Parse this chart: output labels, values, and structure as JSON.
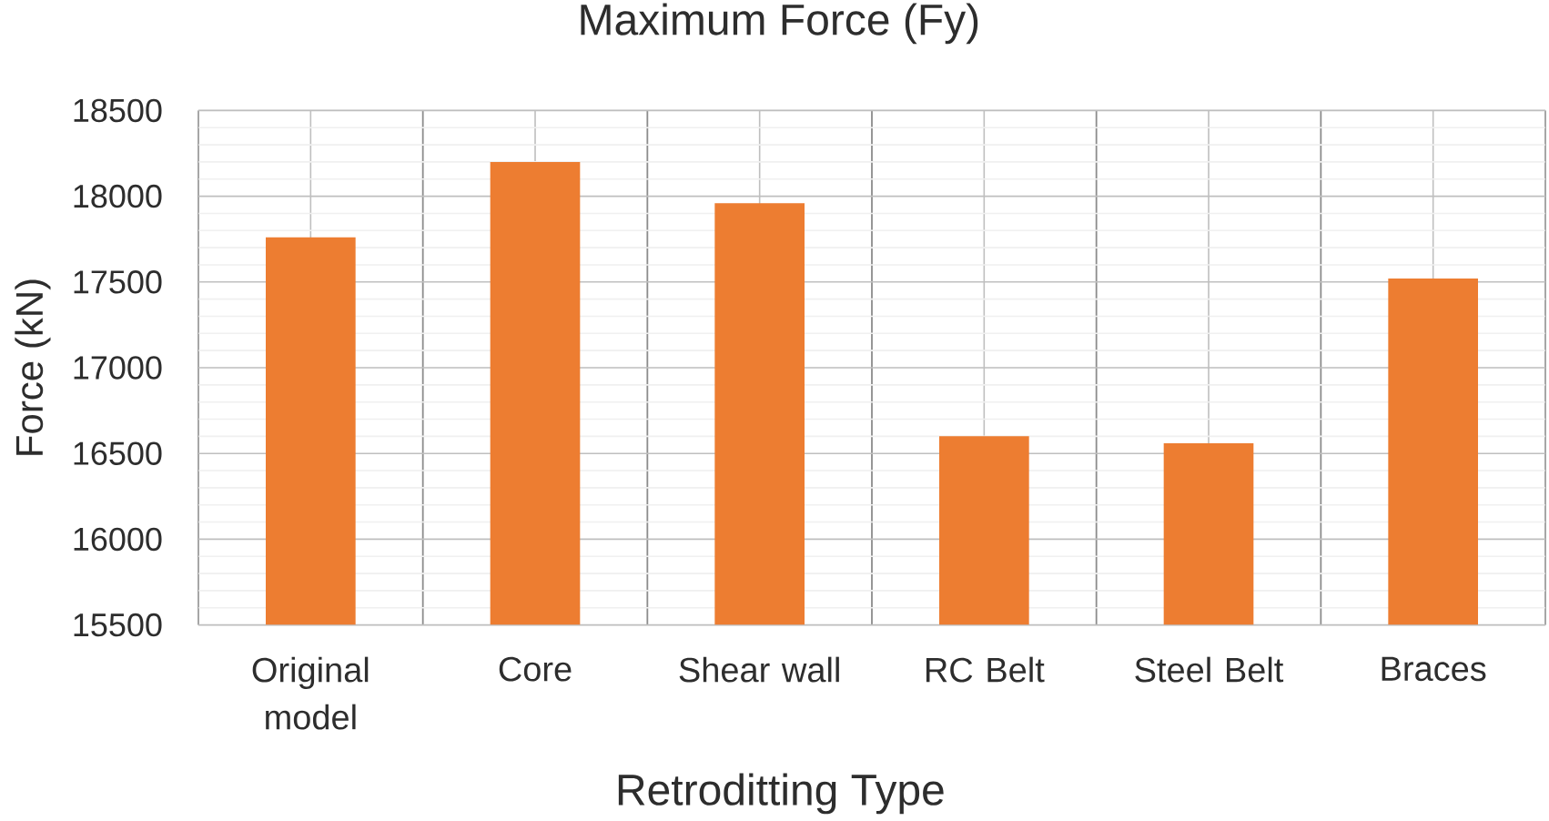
{
  "chart_data": {
    "type": "bar",
    "title": "Maximum Force (Fy)",
    "xlabel": "Retroditting Type",
    "ylabel": "Force (kN)",
    "categories": [
      "Original model",
      "Core",
      "Shear wall",
      "RC Belt",
      "Steel Belt",
      "Braces"
    ],
    "values": [
      17760,
      18200,
      17960,
      16600,
      16560,
      17520
    ],
    "color": "#ed7d31",
    "ylim": [
      15500,
      18500
    ],
    "yticks": [
      15500,
      16000,
      16500,
      17000,
      17500,
      18000,
      18500
    ],
    "grid": true
  }
}
